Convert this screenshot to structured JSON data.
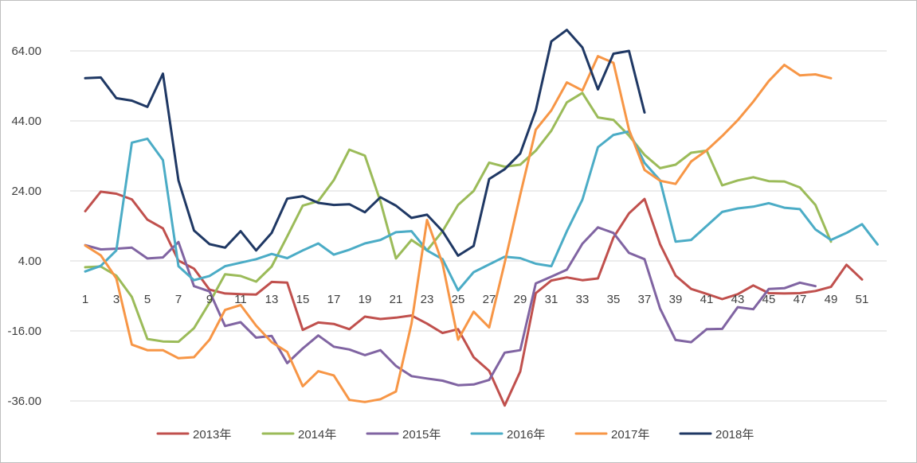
{
  "chart_data": {
    "type": "line",
    "title": "",
    "xlabel": "",
    "ylabel": "",
    "ylim": [
      -36,
      64
    ],
    "y_ticks": [
      "64.00",
      "44.00",
      "24.00",
      "4.00",
      "-16.00",
      "-36.00"
    ],
    "x_range": [
      1,
      53
    ],
    "x_ticks": [
      "1",
      "3",
      "5",
      "7",
      "9",
      "11",
      "13",
      "15",
      "17",
      "19",
      "21",
      "23",
      "25",
      "27",
      "29",
      "31",
      "33",
      "35",
      "37",
      "39",
      "41",
      "43",
      "45",
      "47",
      "49",
      "51"
    ],
    "grid": "horizontal",
    "legend_position": "bottom",
    "series": [
      {
        "name": "2013年",
        "color": "#c0504d",
        "values": [
          18.2,
          23.8,
          23.2,
          21.6,
          15.8,
          13.3,
          4.1,
          1.8,
          -4.2,
          -5.3,
          -5.5,
          -5.6,
          -2.0,
          -2.2,
          -15.7,
          -13.6,
          -14.0,
          -15.5,
          -11.9,
          -12.6,
          -12.2,
          -11.6,
          -13.9,
          -16.6,
          -15.5,
          -23.5,
          -27.4,
          -37.3,
          -27.6,
          -5.2,
          -1.6,
          -0.7,
          -1.5,
          -1.0,
          10.7,
          17.6,
          21.7,
          8.8,
          -0.2,
          -4.0,
          -5.4,
          -6.9,
          -5.5,
          -3.0,
          -5.2,
          -5.3,
          -5.2,
          -4.6,
          -3.4,
          2.9,
          -1.3,
          null,
          null
        ]
      },
      {
        "name": "2014年",
        "color": "#9bbb59",
        "values": [
          2.2,
          2.4,
          -0.2,
          -6.3,
          -18.3,
          -19.0,
          -19.1,
          -15.2,
          -7.9,
          0.2,
          -0.3,
          -1.9,
          2.4,
          11.0,
          19.8,
          21.1,
          27.1,
          35.8,
          34.1,
          21.0,
          4.7,
          10.0,
          7.0,
          12.5,
          20.0,
          24.0,
          32.1,
          30.9,
          31.5,
          35.5,
          41.2,
          49.3,
          52.0,
          45.0,
          44.3,
          39.8,
          34.3,
          30.5,
          31.5,
          34.9,
          35.5,
          25.6,
          27.0,
          27.9,
          26.8,
          26.7,
          25.0,
          20.0,
          9.5,
          null,
          null,
          null,
          null
        ]
      },
      {
        "name": "2015年",
        "color": "#8064a2",
        "values": [
          8.5,
          7.3,
          7.5,
          7.8,
          4.7,
          5.0,
          9.4,
          -3.2,
          -4.7,
          -14.6,
          -13.5,
          -17.9,
          -17.4,
          -25.2,
          -21.0,
          -17.3,
          -20.5,
          -21.3,
          -22.9,
          -21.5,
          -26.0,
          -28.9,
          -29.6,
          -30.2,
          -31.5,
          -31.3,
          -30.0,
          -22.2,
          -21.5,
          -2.4,
          -0.5,
          1.5,
          8.9,
          13.6,
          12.0,
          6.3,
          4.5,
          -9.6,
          -18.6,
          -19.2,
          -15.5,
          -15.4,
          -9.2,
          -9.8,
          -4.0,
          -3.8,
          -2.2,
          -3.2,
          null,
          null,
          null,
          null,
          null
        ]
      },
      {
        "name": "2016年",
        "color": "#4bacc6",
        "values": [
          1.0,
          2.6,
          7.0,
          37.8,
          38.9,
          32.8,
          2.5,
          -1.5,
          -0.3,
          2.5,
          3.5,
          4.5,
          6.0,
          4.8,
          7.0,
          9.0,
          5.8,
          7.2,
          9.0,
          10.0,
          12.2,
          12.5,
          7.0,
          4.5,
          -4.4,
          0.8,
          3.0,
          5.2,
          4.8,
          3.2,
          2.5,
          12.5,
          21.5,
          36.5,
          40.0,
          41.0,
          32.0,
          27.0,
          9.5,
          10.0,
          14.0,
          18.0,
          19.0,
          19.5,
          20.5,
          19.2,
          18.8,
          13.0,
          10.0,
          12.0,
          14.5,
          8.7,
          null
        ]
      },
      {
        "name": "2017年",
        "color": "#f79646",
        "values": [
          8.4,
          5.6,
          -1.0,
          -19.9,
          -21.5,
          -21.5,
          -23.8,
          -23.5,
          -18.5,
          -10.0,
          -8.6,
          -14.5,
          -19.2,
          -22.0,
          -31.8,
          -27.5,
          -28.7,
          -35.7,
          -36.3,
          -35.5,
          -33.3,
          -13.9,
          15.7,
          3.2,
          -18.5,
          -10.5,
          -15.0,
          3.5,
          22.9,
          41.5,
          47.0,
          55.0,
          52.7,
          62.5,
          60.6,
          41.5,
          30.0,
          26.9,
          26.0,
          32.4,
          35.6,
          39.7,
          44.2,
          49.5,
          55.4,
          60.0,
          57.0,
          57.3,
          56.2,
          null,
          null,
          null,
          null
        ]
      },
      {
        "name": "2018年",
        "color": "#1f3864",
        "values": [
          56.2,
          56.4,
          50.5,
          49.8,
          48.0,
          57.5,
          27.0,
          12.7,
          8.8,
          7.8,
          12.5,
          7.0,
          12.0,
          21.8,
          22.5,
          20.6,
          20.0,
          20.2,
          17.9,
          22.2,
          19.8,
          16.3,
          17.2,
          12.5,
          5.5,
          8.3,
          27.4,
          30.2,
          34.7,
          47.0,
          66.7,
          70.0,
          65.0,
          53.0,
          63.2,
          64.0,
          46.4,
          null,
          null,
          null,
          null,
          null,
          null,
          null,
          null,
          null,
          null,
          null,
          null,
          null,
          null,
          null,
          null
        ]
      }
    ]
  }
}
